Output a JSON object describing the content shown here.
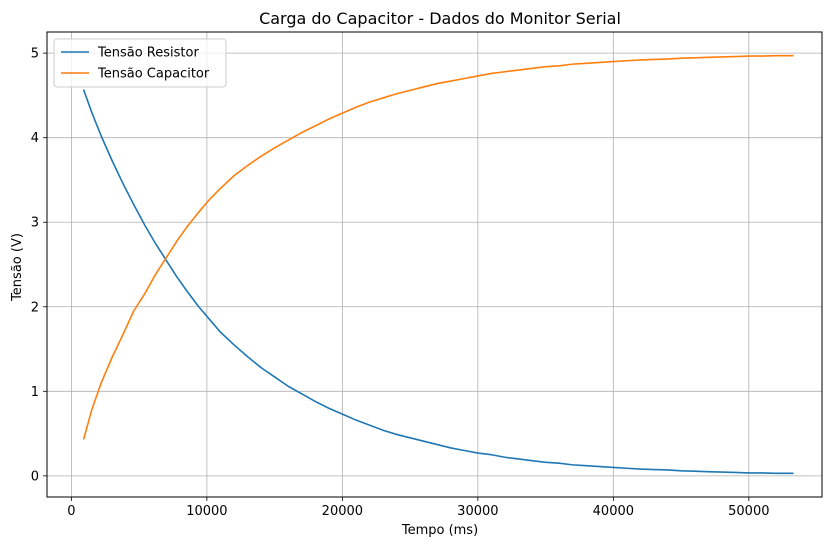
{
  "chart_data": {
    "type": "line",
    "title": "Carga do Capacitor - Dados do Monitor Serial",
    "xlabel": "Tempo (ms)",
    "ylabel": "Tensão (V)",
    "xlim": [
      -1800,
      55400
    ],
    "ylim": [
      -0.25,
      5.25
    ],
    "xticks": [
      0,
      10000,
      20000,
      30000,
      40000,
      50000
    ],
    "yticks": [
      0,
      1,
      2,
      3,
      4,
      5
    ],
    "grid": true,
    "legend_position": "top-left",
    "series": [
      {
        "name": "Tensão Resistor",
        "color": "#1f77b4",
        "x": [
          900,
          1500,
          2200,
          3000,
          3800,
          4600,
          5400,
          6200,
          7000,
          7800,
          8600,
          9400,
          10200,
          11000,
          12000,
          13000,
          14000,
          15000,
          16000,
          17000,
          18000,
          19000,
          20000,
          21000,
          22000,
          23000,
          24000,
          25000,
          26000,
          27000,
          28000,
          29000,
          30000,
          31000,
          32000,
          33000,
          34000,
          35000,
          36000,
          37000,
          38000,
          39000,
          40000,
          41000,
          42000,
          43000,
          44000,
          45000,
          46000,
          47000,
          48000,
          49000,
          50000,
          51000,
          52000,
          53300
        ],
        "y": [
          4.57,
          4.3,
          4.02,
          3.73,
          3.46,
          3.21,
          2.97,
          2.75,
          2.55,
          2.35,
          2.17,
          2.0,
          1.85,
          1.7,
          1.55,
          1.41,
          1.28,
          1.17,
          1.06,
          0.97,
          0.88,
          0.8,
          0.73,
          0.66,
          0.6,
          0.54,
          0.49,
          0.45,
          0.41,
          0.37,
          0.33,
          0.3,
          0.27,
          0.25,
          0.22,
          0.2,
          0.18,
          0.16,
          0.15,
          0.13,
          0.12,
          0.11,
          0.1,
          0.09,
          0.08,
          0.075,
          0.07,
          0.06,
          0.055,
          0.05,
          0.045,
          0.04,
          0.035,
          0.035,
          0.03,
          0.03
        ]
      },
      {
        "name": "Tensão Capacitor",
        "color": "#ff7f0e",
        "x": [
          900,
          1500,
          2200,
          3000,
          3800,
          4600,
          5400,
          6200,
          7000,
          7800,
          8600,
          9400,
          10200,
          11000,
          12000,
          13000,
          14000,
          15000,
          16000,
          17000,
          18000,
          19000,
          20000,
          21000,
          22000,
          23000,
          24000,
          25000,
          26000,
          27000,
          28000,
          29000,
          30000,
          31000,
          32000,
          33000,
          34000,
          35000,
          36000,
          37000,
          38000,
          39000,
          40000,
          41000,
          42000,
          43000,
          44000,
          45000,
          46000,
          47000,
          48000,
          49000,
          50000,
          51000,
          52000,
          53300
        ],
        "y": [
          0.43,
          0.78,
          1.1,
          1.4,
          1.67,
          1.95,
          2.15,
          2.38,
          2.58,
          2.78,
          2.96,
          3.12,
          3.27,
          3.4,
          3.55,
          3.67,
          3.78,
          3.88,
          3.97,
          4.06,
          4.14,
          4.22,
          4.29,
          4.36,
          4.42,
          4.47,
          4.52,
          4.56,
          4.6,
          4.64,
          4.67,
          4.7,
          4.73,
          4.76,
          4.78,
          4.8,
          4.82,
          4.84,
          4.85,
          4.87,
          4.88,
          4.89,
          4.9,
          4.91,
          4.92,
          4.925,
          4.93,
          4.94,
          4.945,
          4.95,
          4.955,
          4.96,
          4.965,
          4.965,
          4.97,
          4.97
        ]
      }
    ]
  }
}
